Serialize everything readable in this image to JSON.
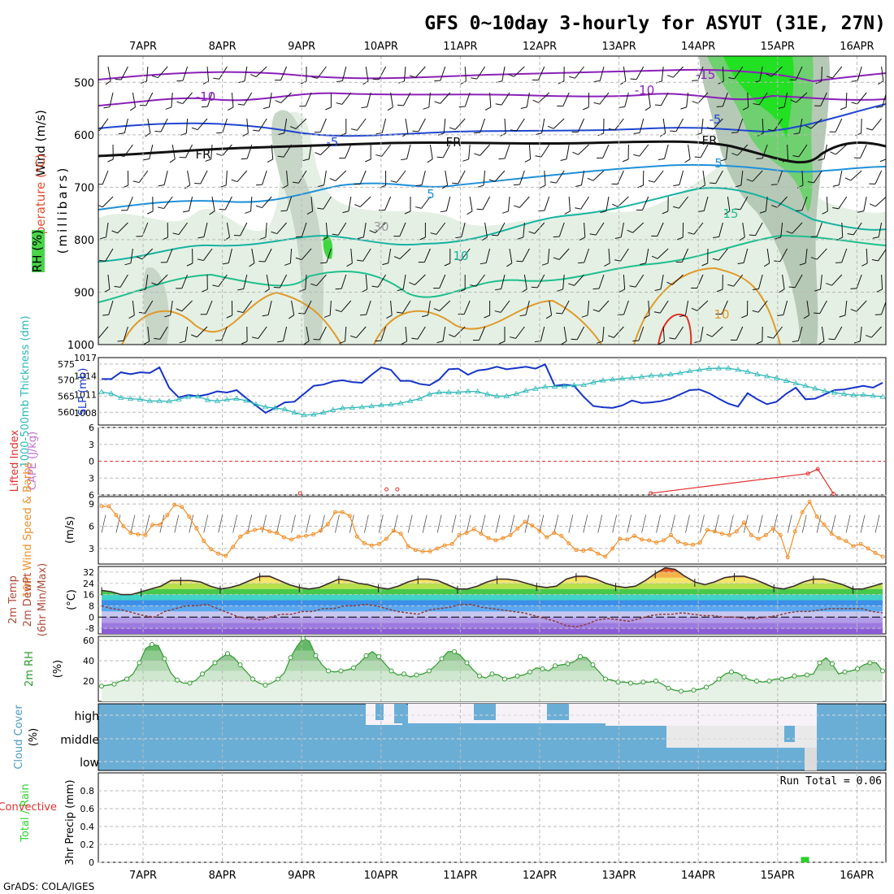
{
  "title": "GFS 0~10day 3-hourly for ASYUT (31E, 27N)",
  "footer": "GrADS: COLA/IGES",
  "colors": {
    "grid": "#b9b9b9",
    "frame": "#000000",
    "slp": "#1633c8",
    "thickness": "#2bb7b7",
    "temp": "#3b2d2a",
    "dewpoint": "#8c3a3a",
    "wind_speed": "#ef8e27",
    "rh": "#2f9a2f",
    "cloud": "#6aaed6",
    "precip": "#2ad22a",
    "lifted_index": "#e03030"
  },
  "dates": [
    "7APR",
    "8APR",
    "9APR",
    "10APR",
    "11APR",
    "12APR",
    "13APR",
    "14APR",
    "15APR",
    "16APR"
  ],
  "chart_data": [
    {
      "type": "heatmap",
      "panel": "upper-air",
      "ylabels": [
        "Wind (m/s)",
        "Temperature (°C)",
        "RH (%)",
        "(millibars)"
      ],
      "y_ticks": [
        500,
        600,
        700,
        800,
        900,
        1000
      ],
      "ylim": [
        1000,
        450
      ],
      "contour_labels": [
        "-15",
        "-10",
        "-10",
        "-5",
        "-5",
        "FR",
        "FR",
        "FR",
        "5",
        "5",
        "10",
        "15",
        "10",
        "30"
      ]
    },
    {
      "type": "line",
      "panel": "thickness-slp",
      "ylabels": [
        "1000-500mb Thickness (dm)",
        "SLP (mb)"
      ],
      "left_ticks": [
        560,
        565,
        570,
        575
      ],
      "right_ticks": [
        1008,
        1011,
        1014,
        1017
      ],
      "ylim_left": [
        556,
        577
      ],
      "ylim_right": [
        1006,
        1017
      ],
      "series": [
        {
          "name": "SLP (mb)",
          "axis": "right",
          "values": [
            1013.5,
            1013.5,
            1014.6,
            1014.3,
            1014.6,
            1014.5,
            1015.4,
            1012.1,
            1010.5,
            1010.9,
            1010.7,
            1011.0,
            1011.5,
            1011.3,
            1011.7,
            1010.4,
            1009.2,
            1008.0,
            1008.8,
            1009.7,
            1009.8,
            1011.1,
            1012.4,
            1012.6,
            1013.1,
            1013.3,
            1013.0,
            1012.9,
            1014.2,
            1015.4,
            1015.0,
            1013.2,
            1013.2,
            1012.7,
            1012.5,
            1013.4,
            1015.1,
            1015.2,
            1014.2,
            1014.9,
            1015.1,
            1015.5,
            1015.1,
            1015.3,
            1015.5,
            1015.2,
            1015.9,
            1012.4,
            1012.6,
            1012.4,
            1010.6,
            1009.1,
            1008.9,
            1008.8,
            1009.2,
            1010.0,
            1009.6,
            1009.7,
            1009.9,
            1010.3,
            1011.0,
            1011.7,
            1011.8,
            1011.2,
            1010.3,
            1009.5,
            1009.0,
            1011.2,
            1010.2,
            1009.4,
            1009.8,
            1011.1,
            1012.1,
            1010.2,
            1010.3,
            1011.0,
            1011.7,
            1011.8,
            1012.1,
            1012.4,
            1012.1,
            1012.9
          ]
        },
        {
          "name": "1000-500mb Thickness (dm)",
          "axis": "left",
          "values": [
            566.3,
            565.8,
            564.5,
            564.2,
            564.0,
            563.5,
            563.5,
            563.4,
            564.0,
            564.8,
            564.9,
            563.8,
            563.5,
            563.9,
            564.2,
            563.6,
            562.5,
            561.6,
            561.3,
            560.9,
            559.9,
            559.1,
            559.3,
            559.9,
            560.7,
            561.3,
            561.4,
            561.6,
            561.9,
            562.2,
            562.4,
            562.8,
            563.5,
            564.2,
            565.6,
            566.2,
            566.2,
            566.2,
            566.5,
            566.4,
            565.6,
            565.0,
            565.0,
            565.7,
            566.7,
            567.3,
            567.9,
            568.0,
            568.1,
            568.4,
            568.5,
            569.3,
            569.9,
            570.2,
            570.5,
            570.7,
            571.0,
            571.4,
            571.5,
            571.8,
            572.2,
            572.8,
            573.2,
            573.6,
            573.7,
            573.7,
            573.2,
            572.6,
            571.8,
            571.2,
            570.6,
            569.8,
            569.0,
            568.2,
            567.4,
            566.6,
            566.1,
            565.7,
            565.3,
            565.4,
            565.1,
            564.8
          ]
        }
      ]
    },
    {
      "type": "line",
      "panel": "stability",
      "ylabels": [
        "Lifted Index",
        "CAPE (J/kg)"
      ],
      "y_ticks": [
        6,
        3,
        0,
        -3,
        -6
      ],
      "y_tick_labels": [
        "6",
        "3",
        "0",
        "3",
        "6"
      ],
      "ylim": [
        6,
        -6
      ],
      "series": [
        {
          "name": "Lifted Index",
          "points": [
            [
              20.2,
              5.7
            ],
            [
              29.0,
              5.0
            ],
            [
              30.1,
              5.0
            ],
            [
              55.9,
              5.7
            ],
            [
              71.9,
              2.2
            ],
            [
              72.9,
              1.4
            ],
            [
              74.5,
              5.8
            ]
          ]
        }
      ]
    },
    {
      "type": "line",
      "panel": "wind10m",
      "ylabels": [
        "10m Wind Speed & Barbs",
        "(m/s)"
      ],
      "y_ticks": [
        3,
        6,
        9
      ],
      "ylim": [
        0.9,
        10
      ],
      "series": [
        {
          "name": "10m Wind Speed",
          "values": [
            8.7,
            8.7,
            7.5,
            6.0,
            5.1,
            4.9,
            4.8,
            6.2,
            6.2,
            7.5,
            8.9,
            8.6,
            7.3,
            5.7,
            4.0,
            2.9,
            2.3,
            2.0,
            3.2,
            4.6,
            5.2,
            5.5,
            5.7,
            5.3,
            5.1,
            4.5,
            4.2,
            4.6,
            4.7,
            4.9,
            5.4,
            6.3,
            7.9,
            7.9,
            7.4,
            4.6,
            3.7,
            3.4,
            3.6,
            4.3,
            5.4,
            5.0,
            3.3,
            2.8,
            2.6,
            2.6,
            3.0,
            3.4,
            3.6,
            4.8,
            5.1,
            5.6,
            5.0,
            4.4,
            4.1,
            4.4,
            4.8,
            5.7,
            6.6,
            6.1,
            5.4,
            4.5,
            5.1,
            4.7,
            3.7,
            2.8,
            2.7,
            2.9,
            2.3,
            1.9,
            3.0,
            4.3,
            4.2,
            4.7,
            4.2,
            4.1,
            3.8,
            4.1,
            4.8,
            3.9,
            3.6,
            3.5,
            3.8,
            5.5,
            5.3,
            5.0,
            4.8,
            5.3,
            6.5,
            4.8,
            4.3,
            4.8,
            5.7,
            4.8,
            1.8,
            5.3,
            7.9,
            9.3,
            7.3,
            6.2,
            5.0,
            4.4,
            4.0,
            3.3,
            3.6,
            3.0,
            2.4,
            1.9
          ]
        }
      ]
    },
    {
      "type": "area",
      "panel": "temperature",
      "ylabels": [
        "2m Temp",
        "2m DewPt",
        "(6hr Min/Max)",
        "(°C)"
      ],
      "y_ticks": [
        -8,
        0,
        8,
        16,
        24,
        32
      ],
      "ylim": [
        -12,
        36
      ],
      "series": [
        {
          "name": "2m Temp",
          "values": [
            19,
            18,
            16,
            16,
            18,
            20,
            22,
            26,
            26,
            26,
            25,
            22,
            20,
            21,
            23,
            26,
            29,
            29,
            26,
            23,
            21,
            20,
            21,
            24,
            27,
            26,
            24,
            23,
            21,
            20,
            22,
            25,
            27,
            27,
            26,
            23,
            20,
            20,
            22,
            25,
            27,
            27,
            26,
            24,
            22,
            21,
            22,
            27,
            29,
            29,
            27,
            24,
            22,
            21,
            22,
            26,
            31,
            35,
            34,
            29,
            25,
            23,
            25,
            28,
            29,
            29,
            27,
            24,
            21,
            20,
            22,
            25,
            27,
            27,
            25,
            23,
            20,
            20,
            22,
            24
          ]
        },
        {
          "name": "2m DewPt",
          "values": [
            8,
            6,
            5,
            3,
            1,
            0,
            4,
            6,
            8,
            8,
            9,
            6,
            3,
            0,
            -1,
            -2,
            0,
            2,
            2,
            4,
            4,
            6,
            6,
            8,
            8,
            9,
            8,
            6,
            4,
            3,
            2,
            5,
            6,
            7,
            9,
            9,
            7,
            6,
            5,
            4,
            3,
            1,
            -1,
            -3,
            -6,
            -7,
            -5,
            -2,
            -1,
            -2,
            -3,
            -1,
            1,
            2,
            2,
            3,
            2,
            1,
            1,
            0,
            0,
            -1,
            -1,
            0,
            1,
            3,
            4,
            4,
            5,
            6,
            6,
            6,
            6,
            4,
            3
          ]
        }
      ]
    },
    {
      "type": "area",
      "panel": "rh",
      "ylabels": [
        "2m RH",
        "(%)"
      ],
      "y_ticks": [
        20,
        40,
        60
      ],
      "ylim": [
        0,
        64
      ],
      "series": [
        {
          "name": "2m RH",
          "values": [
            15,
            16,
            17,
            20,
            22,
            27,
            38,
            52,
            56,
            55,
            42,
            28,
            21,
            18,
            18,
            21,
            27,
            32,
            38,
            43,
            47,
            43,
            36,
            29,
            22,
            18,
            16,
            18,
            22,
            28,
            43,
            54,
            62,
            59,
            45,
            36,
            30,
            29,
            30,
            31,
            33,
            38,
            45,
            49,
            44,
            37,
            30,
            26,
            27,
            24,
            26,
            27,
            30,
            35,
            42,
            49,
            49,
            45,
            38,
            31,
            25,
            23,
            27,
            26,
            22,
            23,
            25,
            26,
            29,
            33,
            32,
            30,
            35,
            36,
            37,
            39,
            44,
            43,
            36,
            29,
            22,
            21,
            19,
            19,
            18,
            17,
            19,
            19,
            20,
            17,
            13,
            11,
            10,
            10,
            11,
            12,
            14,
            17,
            22,
            27,
            29,
            28,
            24,
            21,
            20,
            19,
            20,
            22,
            22,
            23,
            25,
            25,
            26,
            27,
            38,
            43,
            37,
            27,
            29,
            30,
            32,
            36,
            38,
            38,
            30
          ]
        }
      ]
    },
    {
      "type": "heatmap",
      "panel": "cloud",
      "ylabels": [
        "Cloud Cover",
        "(%)"
      ],
      "categories": [
        "high",
        "middle",
        "low"
      ]
    },
    {
      "type": "bar",
      "panel": "precip",
      "ylabels": [
        "Total / Rain",
        "Convective",
        "3hr Precip (mm)"
      ],
      "y_ticks": [
        0,
        0.2,
        0.4,
        0.6,
        0.8
      ],
      "ylim": [
        0,
        1
      ],
      "annotation": "Run Total = 0.06",
      "series": [
        {
          "name": "Total / Rain",
          "x": [
            71.6
          ],
          "values": [
            0.06
          ]
        }
      ]
    }
  ]
}
